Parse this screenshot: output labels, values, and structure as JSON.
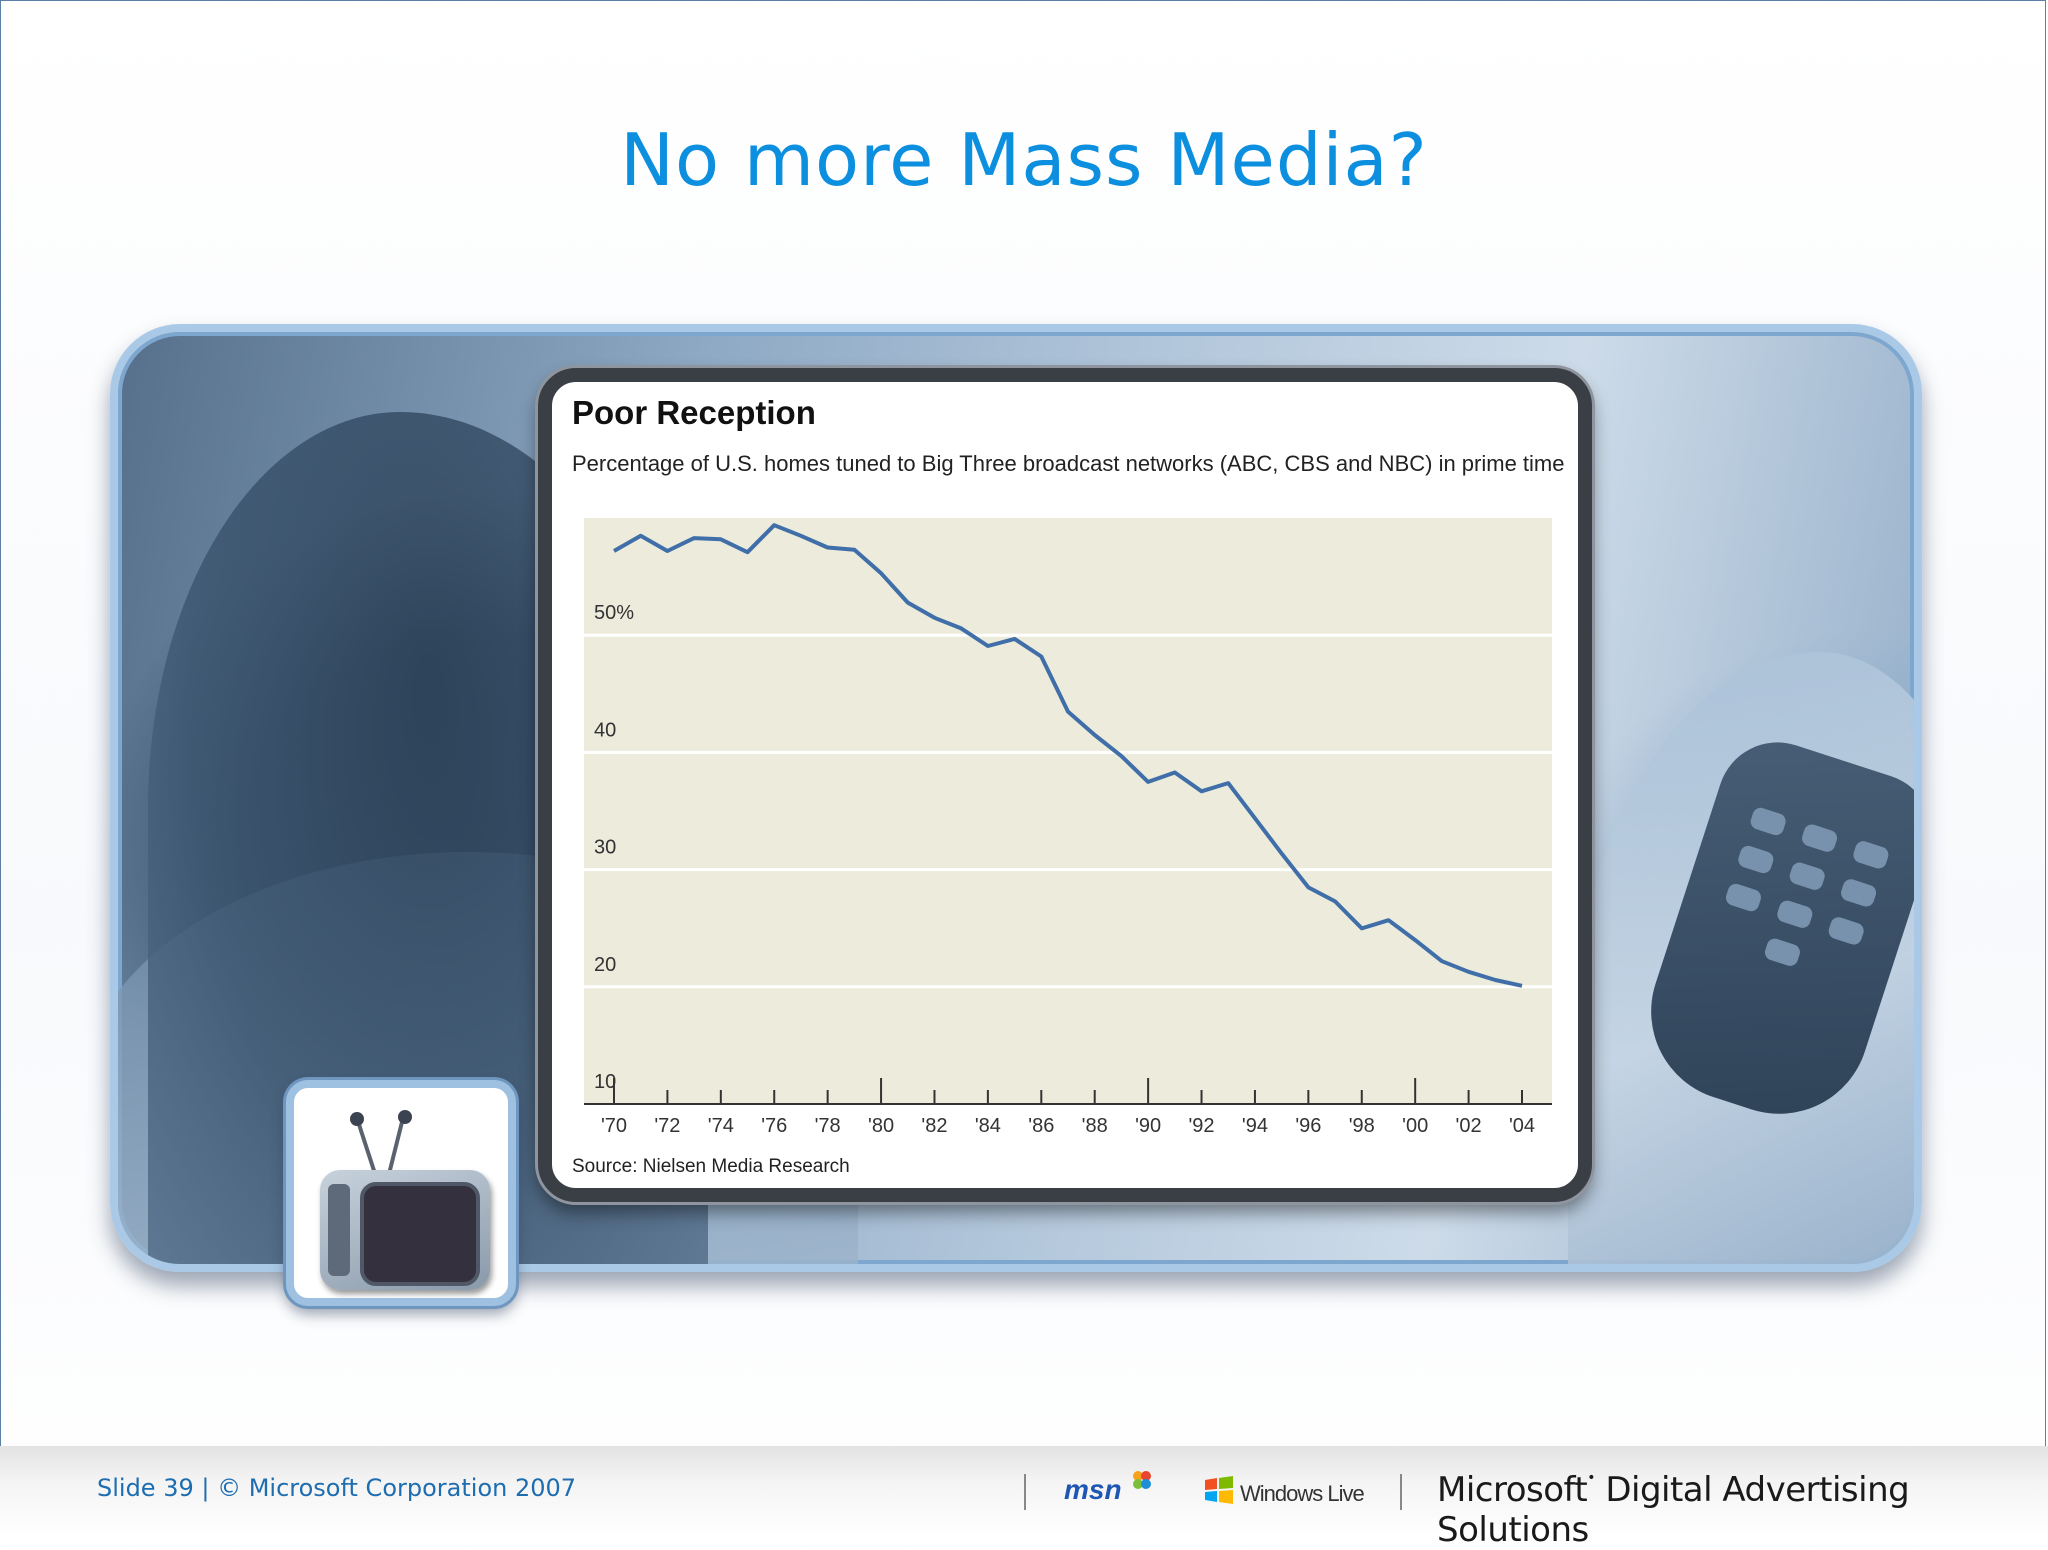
{
  "slide": {
    "title": "No more Mass Media?"
  },
  "chart": {
    "title": "Poor Reception",
    "subtitle": "Percentage of U.S. homes tuned to Big Three broadcast networks (ABC, CBS and NBC) in prime time",
    "source": "Source: Nielsen Media Research",
    "line_color": "#3f6ea8",
    "plot_bg": "#ecebdc"
  },
  "chart_data": {
    "type": "line",
    "title": "Poor Reception",
    "subtitle": "Percentage of U.S. homes tuned to Big Three broadcast networks (ABC, CBS and NBC) in prime time",
    "xlabel": "",
    "ylabel": "",
    "xlim": [
      1970,
      2004
    ],
    "ylim": [
      10,
      60
    ],
    "grid": true,
    "y_ticks": [
      {
        "value": 50,
        "label": "50%"
      },
      {
        "value": 40,
        "label": "40"
      },
      {
        "value": 30,
        "label": "30"
      },
      {
        "value": 20,
        "label": "20"
      },
      {
        "value": 10,
        "label": "10"
      }
    ],
    "x_ticks": [
      {
        "value": 1970,
        "label": "'70"
      },
      {
        "value": 1972,
        "label": "'72"
      },
      {
        "value": 1974,
        "label": "'74"
      },
      {
        "value": 1976,
        "label": "'76"
      },
      {
        "value": 1978,
        "label": "'78"
      },
      {
        "value": 1980,
        "label": "'80"
      },
      {
        "value": 1982,
        "label": "'82"
      },
      {
        "value": 1984,
        "label": "'84"
      },
      {
        "value": 1986,
        "label": "'86"
      },
      {
        "value": 1988,
        "label": "'88"
      },
      {
        "value": 1990,
        "label": "'90"
      },
      {
        "value": 1992,
        "label": "'92"
      },
      {
        "value": 1994,
        "label": "'94"
      },
      {
        "value": 1996,
        "label": "'96"
      },
      {
        "value": 1998,
        "label": "'98"
      },
      {
        "value": 2000,
        "label": "'00"
      },
      {
        "value": 2002,
        "label": "'02"
      },
      {
        "value": 2004,
        "label": "'04"
      }
    ],
    "series": [
      {
        "x": [
          1970,
          1971,
          1972,
          1973,
          1974,
          1975,
          1976,
          1977,
          1978,
          1979,
          1980,
          1981,
          1982,
          1983,
          1984,
          1985,
          1986,
          1987,
          1988,
          1989,
          1990,
          1991,
          1992,
          1993,
          1994,
          1995,
          1996,
          1997,
          1998,
          1999,
          2000,
          2001,
          2002,
          2003,
          2004
        ],
        "y": [
          56.5,
          57.8,
          56.5,
          57.6,
          57.5,
          56.4,
          58.7,
          57.8,
          56.8,
          56.6,
          54.6,
          52.1,
          50.8,
          49.9,
          48.4,
          49.0,
          47.5,
          42.8,
          40.8,
          39.0,
          36.8,
          37.6,
          36.0,
          36.7,
          33.7,
          30.7,
          27.8,
          26.6,
          24.3,
          25.0,
          23.3,
          21.5,
          20.6,
          19.9,
          19.4
        ]
      }
    ]
  },
  "footer": {
    "slide_info": "Slide 39 | © Microsoft Corporation 2007",
    "msn": "msn",
    "windows_live": "Windows Live",
    "microsoft": "Microsoft",
    "microsoft_suffix": "Digital Advertising Solutions"
  }
}
